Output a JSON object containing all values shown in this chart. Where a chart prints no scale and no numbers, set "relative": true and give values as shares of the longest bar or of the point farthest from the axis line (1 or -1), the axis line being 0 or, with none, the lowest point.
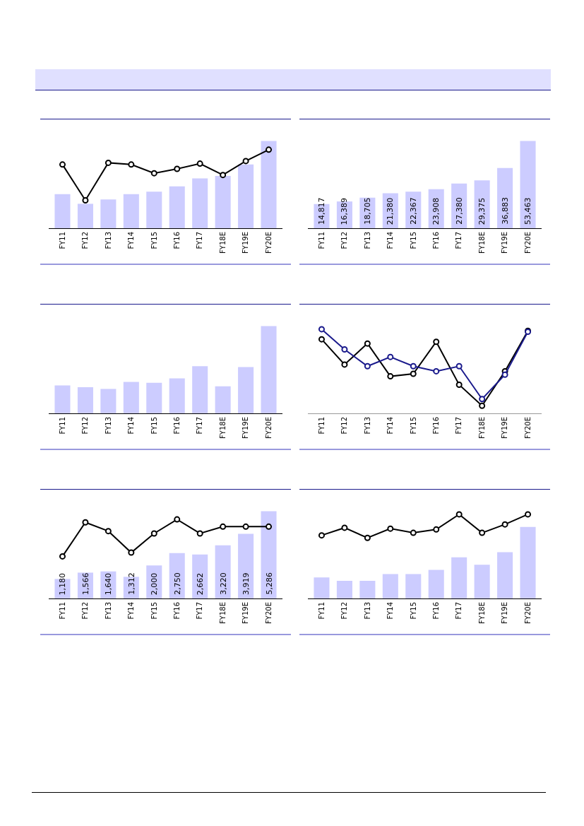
{
  "chart_data": [
    {
      "type": "bar",
      "relative": true,
      "categories": [
        "FY11",
        "FY12",
        "FY13",
        "FY14",
        "FY15",
        "FY16",
        "FY17",
        "FY18E",
        "FY19E",
        "FY20E"
      ],
      "marker": "circle",
      "grid": false,
      "series": [
        {
          "type": "bar",
          "color": "#ccccff",
          "values": [
            0.39,
            0.28,
            0.33,
            0.39,
            0.42,
            0.48,
            0.57,
            0.6,
            0.73,
            1
          ]
        },
        {
          "type": "line",
          "color": "#000000",
          "values": [
            0.73,
            0.32,
            0.75,
            0.73,
            0.63,
            0.68,
            0.74,
            0.61,
            0.77,
            0.9
          ]
        }
      ]
    },
    {
      "type": "bar",
      "tick_labels": "x",
      "categories": [
        "FY11",
        "FY12",
        "FY13",
        "FY14",
        "FY15",
        "FY16",
        "FY17",
        "FY18E",
        "FY19E",
        "FY20E"
      ],
      "grid": false,
      "series": [
        {
          "type": "bar",
          "color": "#ccccff",
          "values": [
            14817,
            16389,
            18705,
            21380,
            22367,
            23908,
            27380,
            29375,
            36883,
            53463
          ],
          "value_labels": [
            "14,817",
            "16,389",
            "18,705",
            "21,380",
            "22,367",
            "23,908",
            "27,380",
            "29,375",
            "36,883",
            "53,463"
          ]
        }
      ]
    },
    {
      "type": "bar",
      "relative": true,
      "categories": [
        "FY11",
        "FY12",
        "FY13",
        "FY14",
        "FY15",
        "FY16",
        "FY17",
        "FY18E",
        "FY19E",
        "FY20E"
      ],
      "grid": false,
      "series": [
        {
          "type": "bar",
          "color": "#ccccff",
          "values": [
            0.32,
            0.3,
            0.28,
            0.36,
            0.35,
            0.4,
            0.54,
            0.31,
            0.53,
            1
          ]
        }
      ]
    },
    {
      "type": "line",
      "relative": true,
      "categories": [
        "FY11",
        "FY12",
        "FY13",
        "FY14",
        "FY15",
        "FY16",
        "FY17",
        "FY18E",
        "FY19E",
        "FY20E"
      ],
      "marker": "circle",
      "grid": false,
      "series": [
        {
          "color": "#000000",
          "values": [
            0.88,
            0.58,
            0.83,
            0.44,
            0.47,
            0.85,
            0.34,
            0.09,
            0.5,
            0.98
          ]
        },
        {
          "color": "#1a1a8c",
          "values": [
            1,
            0.76,
            0.56,
            0.67,
            0.56,
            0.5,
            0.56,
            0.17,
            0.46,
            0.97
          ]
        }
      ]
    },
    {
      "type": "bar",
      "tick_labels": "x",
      "categories": [
        "FY11",
        "FY12",
        "FY13",
        "FY14",
        "FY15",
        "FY16",
        "FY17",
        "FY18E",
        "FY19E",
        "FY20E"
      ],
      "marker": "circle",
      "grid": false,
      "series": [
        {
          "type": "bar",
          "color": "#ccccff",
          "values": [
            1180,
            1566,
            1640,
            1312,
            2000,
            2750,
            2662,
            3220,
            3919,
            5286
          ],
          "value_labels": [
            "1,180",
            "1,566",
            "1,640",
            "1,312",
            "2,000",
            "2,750",
            "2,662",
            "3,220",
            "3,919",
            "5,286"
          ]
        },
        {
          "type": "line",
          "color": "#000000",
          "values": [
            2550,
            4610,
            4080,
            2780,
            3940,
            4790,
            3940,
            4350,
            4350,
            4350
          ]
        }
      ]
    },
    {
      "type": "bar",
      "relative": true,
      "categories": [
        "FY11",
        "FY12",
        "FY13",
        "FY14",
        "FY15",
        "FY16",
        "FY17",
        "FY18E",
        "FY19E",
        "FY20E"
      ],
      "marker": "circle",
      "grid": false,
      "series": [
        {
          "type": "bar",
          "color": "#ccccff",
          "values": [
            0.25,
            0.21,
            0.21,
            0.29,
            0.29,
            0.34,
            0.49,
            0.4,
            0.55,
            0.85
          ]
        },
        {
          "type": "line",
          "color": "#000000",
          "values": [
            0.75,
            0.84,
            0.72,
            0.83,
            0.78,
            0.82,
            1,
            0.78,
            0.88,
            1
          ]
        }
      ]
    }
  ]
}
